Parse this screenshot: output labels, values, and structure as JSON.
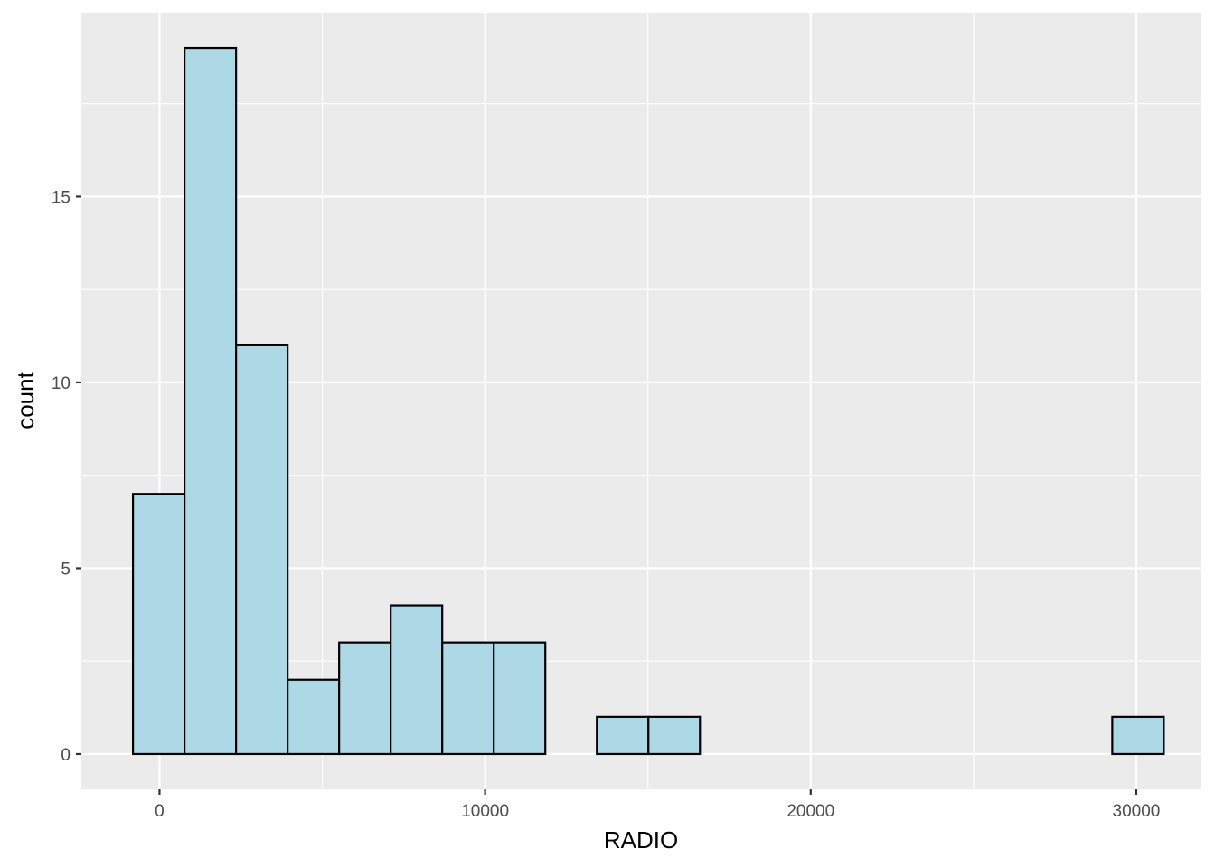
{
  "chart_data": {
    "type": "bar",
    "subtype": "histogram",
    "xlabel": "RADIO",
    "ylabel": "count",
    "bin_start": -815,
    "bin_width": 1583,
    "counts": [
      7,
      19,
      11,
      2,
      3,
      4,
      3,
      3,
      0,
      1,
      1,
      0,
      0,
      0,
      0,
      0,
      0,
      0,
      0,
      1
    ],
    "xlim": [
      -2400,
      32000
    ],
    "ylim": [
      -0.95,
      19.95
    ],
    "x_ticks": [
      0,
      10000,
      20000,
      30000
    ],
    "x_tick_labels": [
      "0",
      "10000",
      "20000",
      "30000"
    ],
    "y_ticks": [
      0,
      5,
      10,
      15
    ],
    "y_tick_labels": [
      "0",
      "5",
      "10",
      "15"
    ],
    "grid": true,
    "colors": {
      "fill": "#ADD8E6",
      "outline": "#000000",
      "panel": "#EBEBEB",
      "grid": "#FFFFFF"
    }
  }
}
